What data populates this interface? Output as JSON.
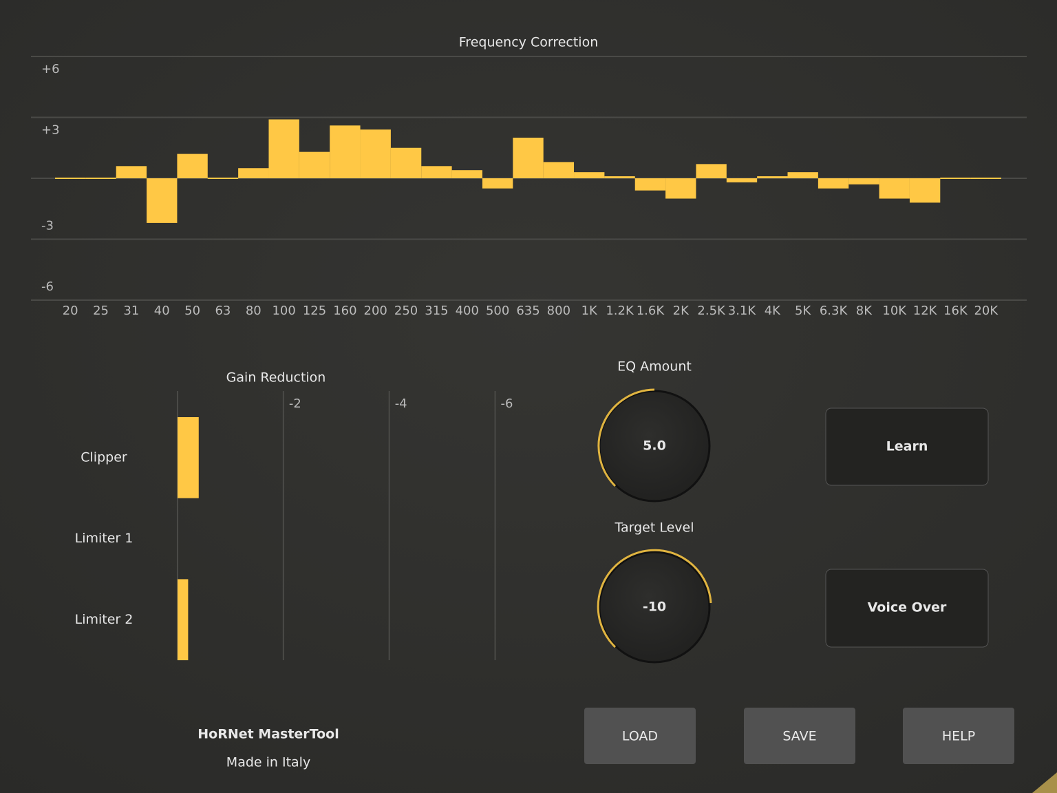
{
  "chart_data": [
    {
      "type": "bar",
      "title": "Frequency Correction",
      "categories": [
        "20",
        "25",
        "31",
        "40",
        "50",
        "63",
        "80",
        "100",
        "125",
        "160",
        "200",
        "250",
        "315",
        "400",
        "500",
        "635",
        "800",
        "1K",
        "1.2K",
        "1.6K",
        "2K",
        "2.5K",
        "3.1K",
        "4K",
        "5K",
        "6.3K",
        "8K",
        "10K",
        "12K",
        "16K",
        "20K"
      ],
      "values": [
        0,
        0,
        0.6,
        -2.2,
        1.2,
        0,
        0.5,
        2.9,
        1.3,
        2.6,
        2.4,
        1.5,
        0.6,
        0.4,
        -0.5,
        2.0,
        0.8,
        0.3,
        0.1,
        -0.6,
        -1.0,
        0.7,
        -0.2,
        0.1,
        0.3,
        -0.5,
        -0.3,
        -1.0,
        -1.2,
        0,
        0
      ],
      "color": "#ffc845",
      "ylim": [
        -6,
        6
      ],
      "yticks": [
        {
          "value": 6,
          "label": "+6"
        },
        {
          "value": 3,
          "label": "+3"
        },
        -3,
        -6
      ],
      "grid": true
    },
    {
      "type": "hbar",
      "title": "Gain Reduction",
      "categories": [
        "Clipper",
        "Limiter 1",
        "Limiter 2"
      ],
      "values": [
        -0.4,
        0,
        -0.2
      ],
      "color": "#ffc845",
      "xlim": [
        0,
        -6.5
      ],
      "xticks": [
        -2,
        -4,
        -6
      ],
      "grid": true
    }
  ],
  "knobs": [
    {
      "label": "EQ Amount",
      "value": "5.0"
    },
    {
      "label": "Target Level",
      "value": "-10"
    }
  ],
  "buttons": [
    "Learn",
    "Voice Over"
  ],
  "file_buttons": [
    "LOAD",
    "SAVE",
    "HELP"
  ],
  "footer": {
    "title": "HoRNet MasterTool",
    "subtitle": "Made in Italy"
  }
}
